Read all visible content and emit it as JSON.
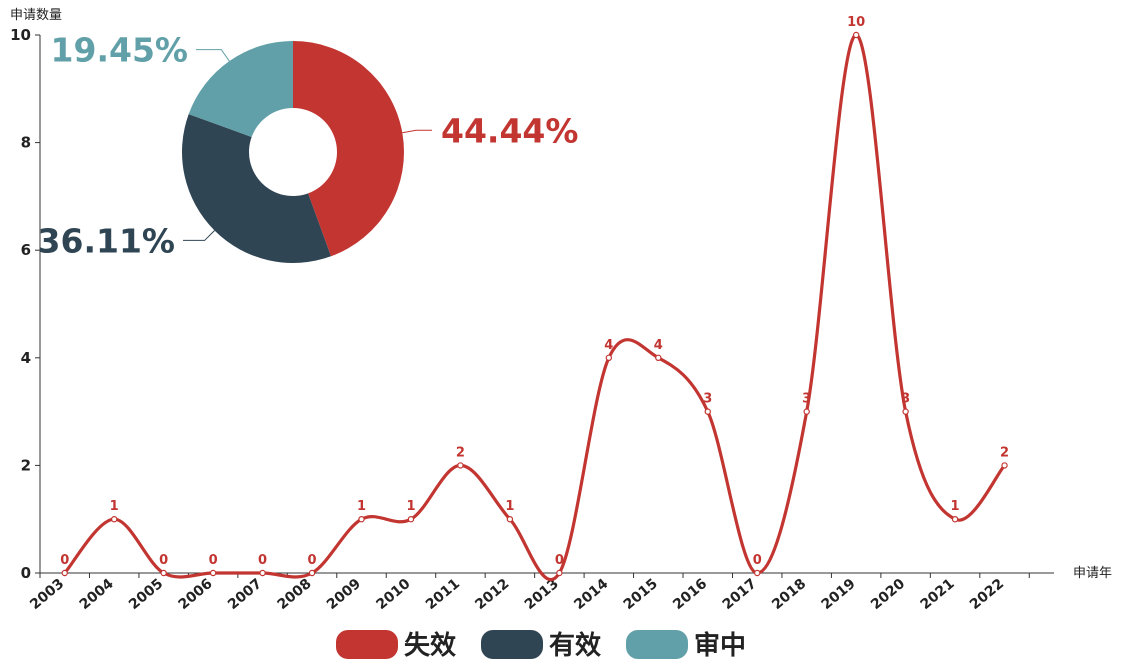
{
  "chart_data": [
    {
      "type": "line",
      "smooth": true,
      "title": "",
      "xlabel": "申请年",
      "ylabel": "申请数量",
      "categories": [
        "2003",
        "2004",
        "2005",
        "2006",
        "2007",
        "2008",
        "2009",
        "2010",
        "2011",
        "2012",
        "2013",
        "2014",
        "2015",
        "2016",
        "2017",
        "2018",
        "2019",
        "2020",
        "2021",
        "2022"
      ],
      "series": [
        {
          "values": [
            0,
            1,
            0,
            0,
            0,
            0,
            1,
            1,
            2,
            1,
            0,
            4,
            4,
            3,
            0,
            3,
            10,
            3,
            1,
            2
          ],
          "color": "#c23531"
        }
      ],
      "ylim": [
        0,
        10
      ],
      "yticks": [
        "0",
        "2",
        "4",
        "6",
        "8",
        "10"
      ],
      "grid": false,
      "data_labels": true
    },
    {
      "type": "pie",
      "donut": true,
      "slices": [
        {
          "name": "失效",
          "value": 44.44,
          "label": "44.44%",
          "color": "#c23531"
        },
        {
          "name": "有效",
          "value": 36.11,
          "label": "36.11%",
          "color": "#2f4554"
        },
        {
          "name": "审中",
          "value": 19.45,
          "label": "19.45%",
          "color": "#61a0a8"
        }
      ]
    }
  ],
  "legend": {
    "position": "bottom-center",
    "items": [
      {
        "label": "失效",
        "color": "#c23531"
      },
      {
        "label": "有效",
        "color": "#2f4554"
      },
      {
        "label": "审中",
        "color": "#61a0a8"
      }
    ]
  }
}
